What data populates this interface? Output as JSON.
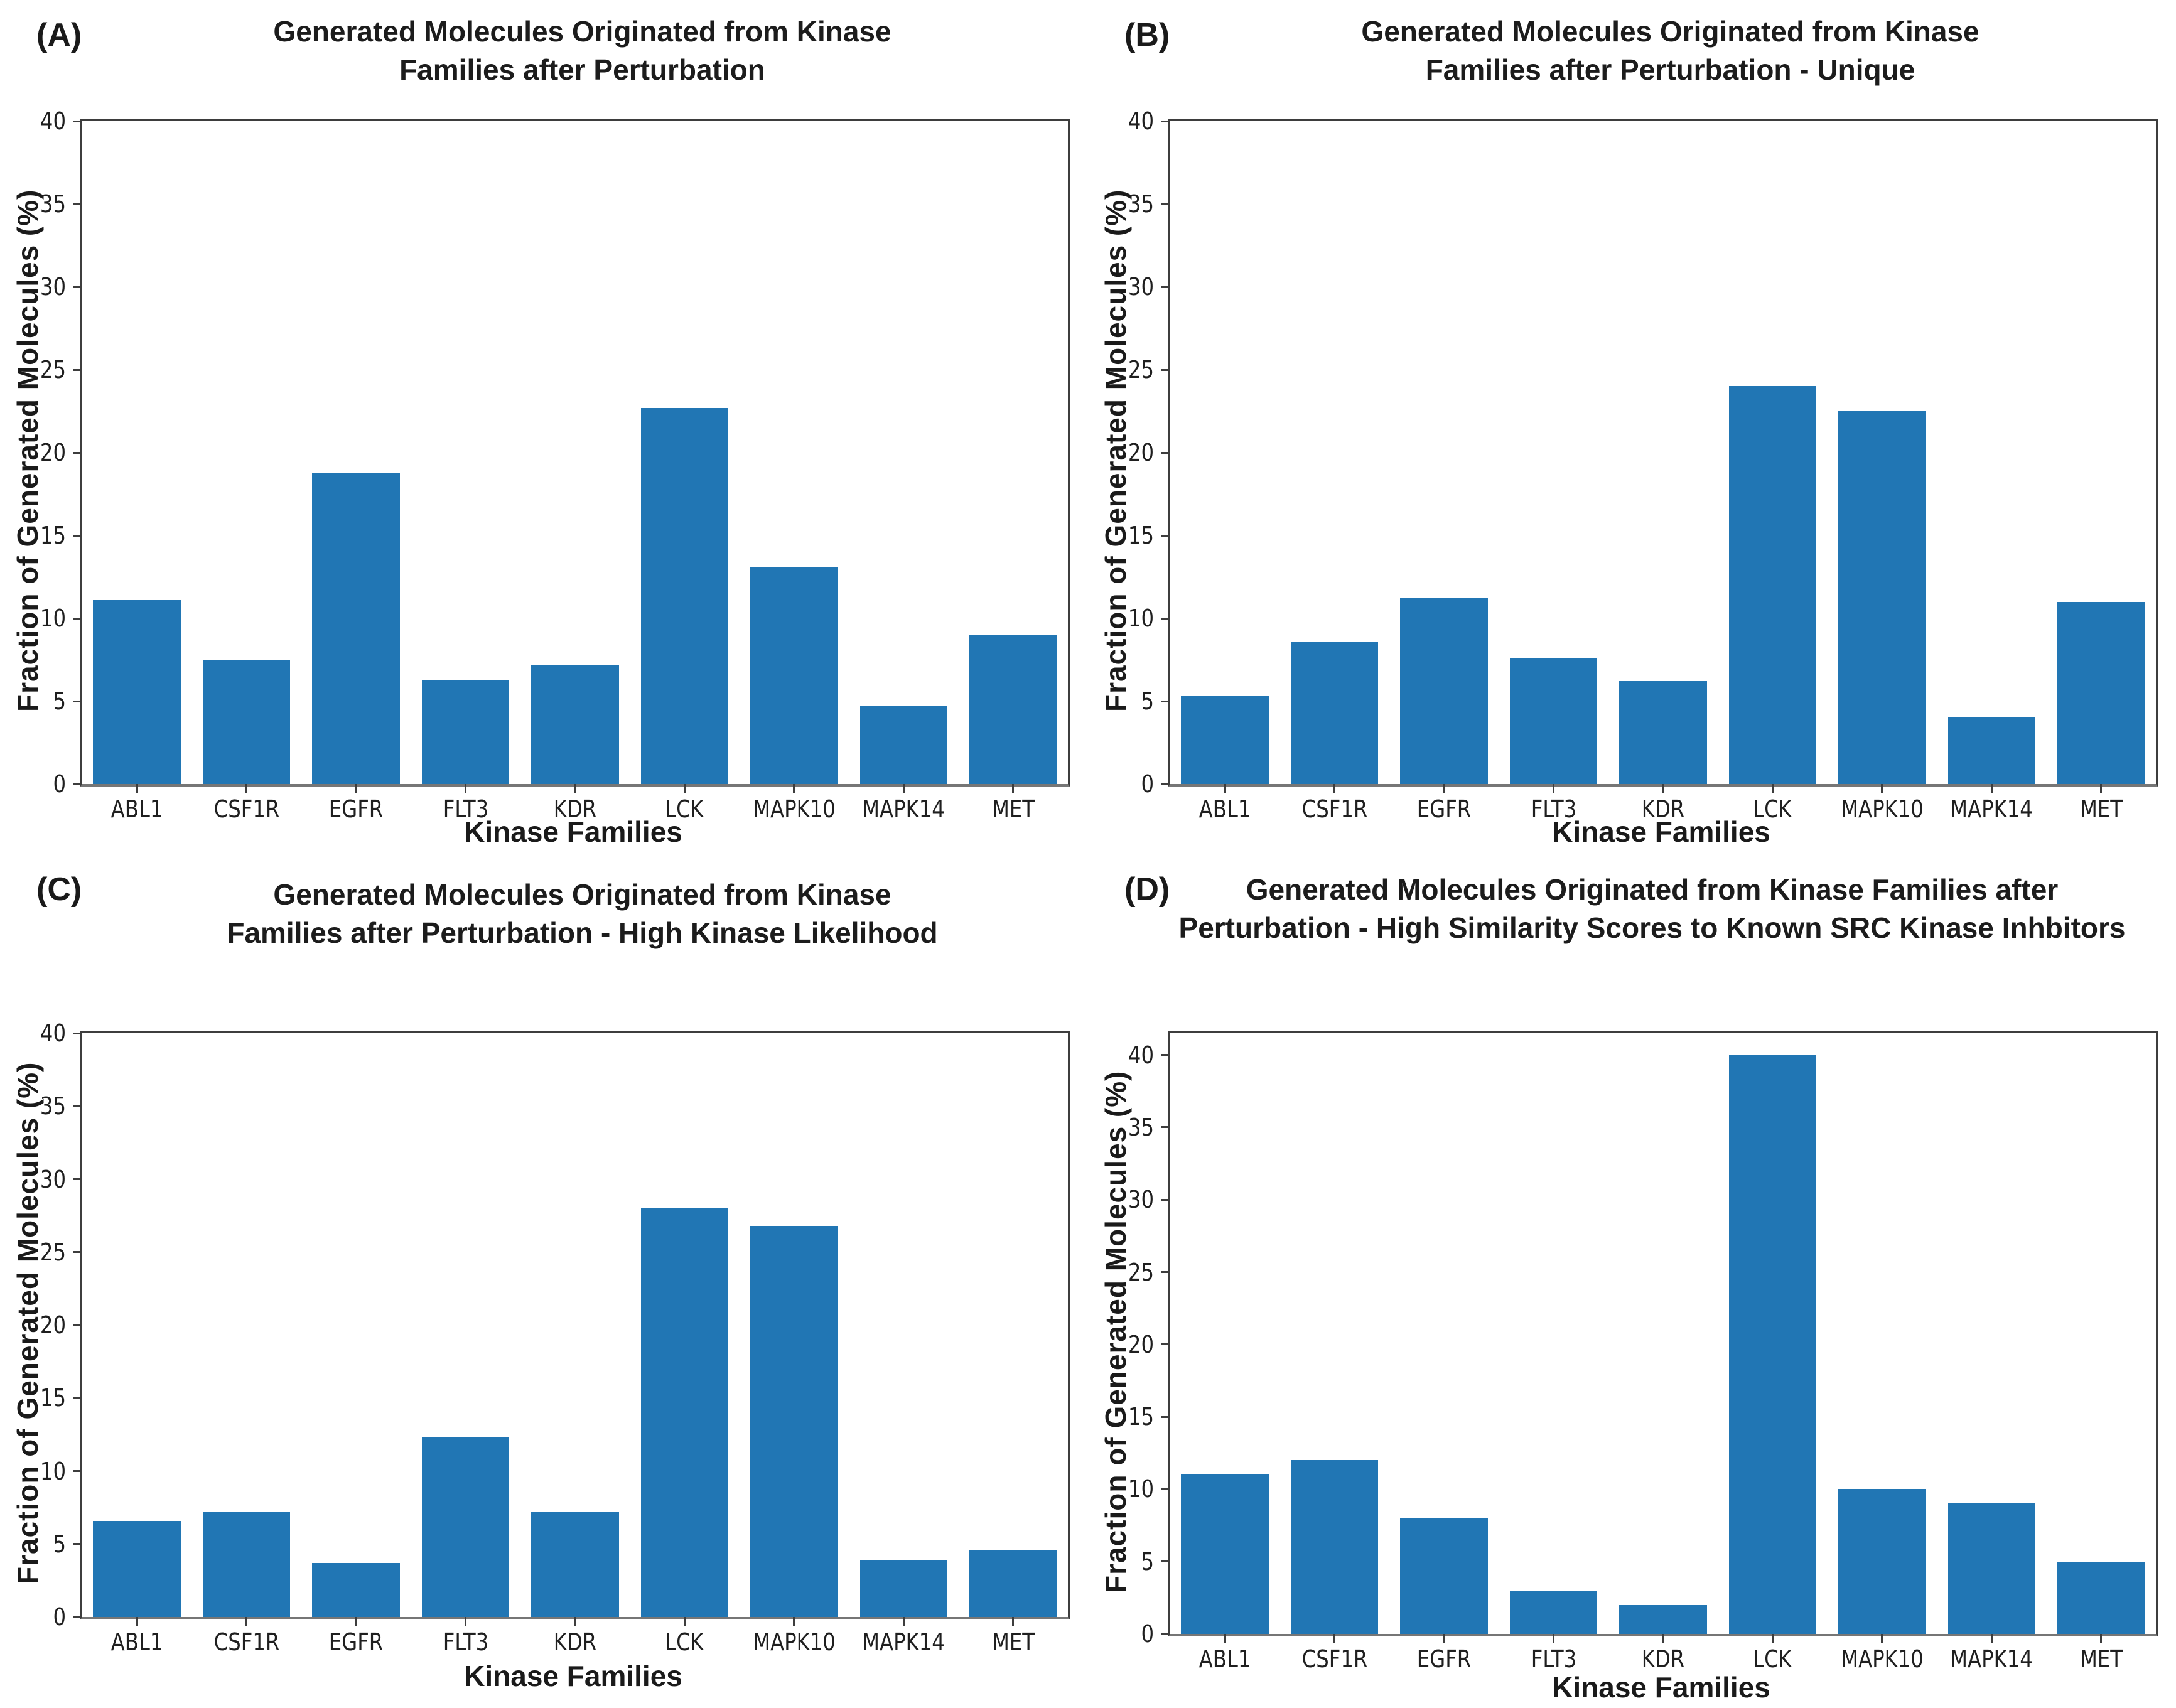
{
  "figure": {
    "background": "#ffffff"
  },
  "colors": {
    "bar": "#2176b4",
    "text": "#1f1f1f",
    "spine": "#3d3d3d"
  },
  "chart_data": [
    {
      "type": "bar",
      "panel_label": "(A)",
      "title": "Generated Molecules Originated from Kinase Families after Perturbation",
      "title_lines": [
        "Generated Molecules Originated from Kinase",
        "Families after Perturbation"
      ],
      "xlabel": "Kinase Families",
      "ylabel": "Fraction of Generated Molecules (%)",
      "categories": [
        "ABL1",
        "CSF1R",
        "EGFR",
        "FLT3",
        "KDR",
        "LCK",
        "MAPK10",
        "MAPK14",
        "MET"
      ],
      "values": [
        11.1,
        7.5,
        18.8,
        6.3,
        7.2,
        22.7,
        13.1,
        4.7,
        9.0
      ],
      "ylim": [
        0,
        40
      ],
      "yticks": [
        0,
        5,
        10,
        15,
        20,
        25,
        30,
        35,
        40
      ],
      "grid": false,
      "legend": null
    },
    {
      "type": "bar",
      "panel_label": "(B)",
      "title": "Generated Molecules Originated from Kinase Families after Perturbation - Unique",
      "title_lines": [
        "Generated Molecules Originated from Kinase",
        "Families after Perturbation - Unique"
      ],
      "xlabel": "Kinase Families",
      "ylabel": "Fraction of Generated Molecules (%)",
      "categories": [
        "ABL1",
        "CSF1R",
        "EGFR",
        "FLT3",
        "KDR",
        "LCK",
        "MAPK10",
        "MAPK14",
        "MET"
      ],
      "values": [
        5.3,
        8.6,
        11.2,
        7.6,
        6.2,
        24.0,
        22.5,
        4.0,
        11.0
      ],
      "ylim": [
        0,
        40
      ],
      "yticks": [
        0,
        5,
        10,
        15,
        20,
        25,
        30,
        35,
        40
      ],
      "grid": false,
      "legend": null
    },
    {
      "type": "bar",
      "panel_label": "(C)",
      "title": "Generated Molecules Originated from Kinase Families after Perturbation - High Kinase Likelihood",
      "title_lines": [
        "Generated Molecules Originated from Kinase",
        "Families after Perturbation - High Kinase Likelihood"
      ],
      "xlabel": "Kinase Families",
      "ylabel": "Fraction of Generated Molecules (%)",
      "categories": [
        "ABL1",
        "CSF1R",
        "EGFR",
        "FLT3",
        "KDR",
        "LCK",
        "MAPK10",
        "MAPK14",
        "MET"
      ],
      "values": [
        6.6,
        7.2,
        3.7,
        12.3,
        7.2,
        28.0,
        26.8,
        3.9,
        4.6
      ],
      "ylim": [
        0,
        40
      ],
      "yticks": [
        0,
        5,
        10,
        15,
        20,
        25,
        30,
        35,
        40
      ],
      "grid": false,
      "legend": null
    },
    {
      "type": "bar",
      "panel_label": "(D)",
      "title": "Generated Molecules Originated from Kinase Families after Perturbation - High Similarity Scores to Known SRC Kinase Inhbitors",
      "title_lines": [
        "Generated Molecules Originated from Kinase Families after",
        "Perturbation - High Similarity Scores to Known SRC Kinase Inhbitors"
      ],
      "xlabel": "Kinase Families",
      "ylabel": "Fraction of Generated Molecules (%)",
      "categories": [
        "ABL1",
        "CSF1R",
        "EGFR",
        "FLT3",
        "KDR",
        "LCK",
        "MAPK10",
        "MAPK14",
        "MET"
      ],
      "values": [
        11.0,
        12.0,
        8.0,
        3.0,
        2.0,
        40.0,
        10.0,
        9.0,
        5.0
      ],
      "ylim": [
        0,
        41.5
      ],
      "yticks": [
        0,
        5,
        10,
        15,
        20,
        25,
        30,
        35,
        40
      ],
      "grid": false,
      "legend": null
    }
  ]
}
